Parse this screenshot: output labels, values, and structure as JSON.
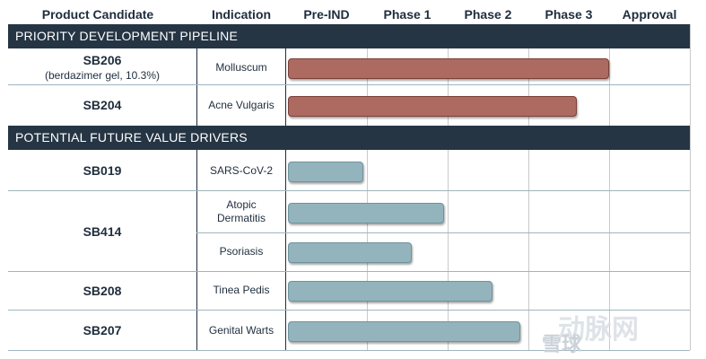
{
  "chart_data": {
    "type": "gantt",
    "columns": [
      "Product Candidate",
      "Indication",
      "Pre-IND",
      "Phase 1",
      "Phase 2",
      "Phase 3",
      "Approval"
    ],
    "stage_axis": {
      "min": 0,
      "max": 5,
      "stages": [
        "Pre-IND",
        "Phase 1",
        "Phase 2",
        "Phase 3",
        "Approval"
      ]
    },
    "sections": [
      {
        "title": "PRIORITY DEVELOPMENT PIPELINE",
        "color": "#ac6a60",
        "rows": [
          {
            "candidate": "SB206",
            "candidate_sub": "(berdazimer gel, 10.3%)",
            "indication": "Molluscum",
            "progress": 4.0
          },
          {
            "candidate": "SB204",
            "candidate_sub": "",
            "indication": "Acne Vulgaris",
            "progress": 3.6
          }
        ]
      },
      {
        "title": "POTENTIAL FUTURE VALUE DRIVERS",
        "color": "#93b4bc",
        "rows": [
          {
            "candidate": "SB019",
            "candidate_sub": "",
            "indication": "SARS-CoV-2",
            "progress": 0.95
          },
          {
            "candidate": "SB414",
            "candidate_sub": "",
            "indication": "Atopic Dermatitis",
            "progress": 1.95
          },
          {
            "candidate": "SB414",
            "candidate_sub": "",
            "indication": "Psoriasis",
            "progress": 1.55
          },
          {
            "candidate": "SB208",
            "candidate_sub": "",
            "indication": "Tinea Pedis",
            "progress": 2.55
          },
          {
            "candidate": "SB207",
            "candidate_sub": "",
            "indication": "Genital Warts",
            "progress": 2.9
          }
        ]
      }
    ]
  },
  "watermark": {
    "logo_text": "动脉网",
    "sub_text": "雪球"
  }
}
